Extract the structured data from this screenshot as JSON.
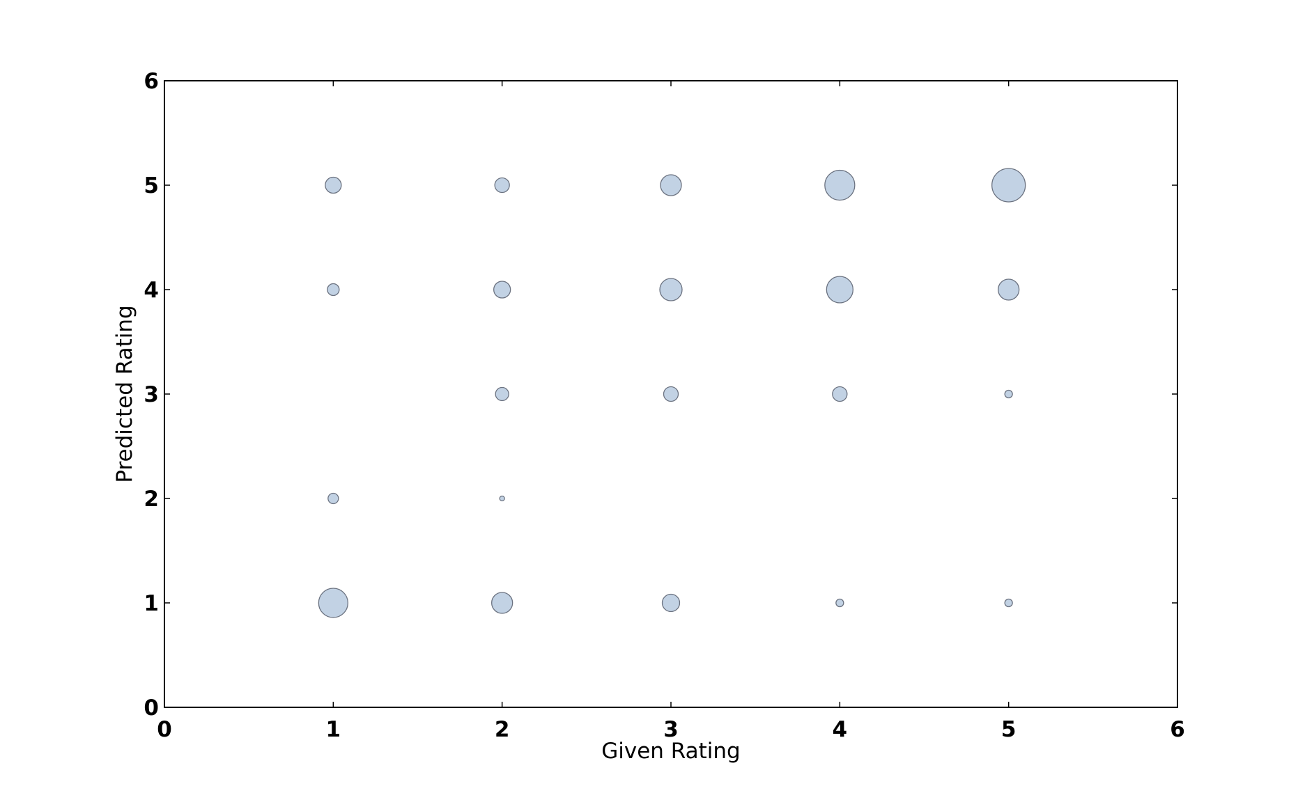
{
  "chart_data": {
    "type": "scatter",
    "title": "",
    "xlabel": "Given Rating",
    "ylabel": "Predicted Rating",
    "xlim": [
      0,
      6
    ],
    "ylim": [
      0,
      6
    ],
    "xticks": [
      0,
      1,
      2,
      3,
      4,
      5,
      6
    ],
    "yticks": [
      0,
      1,
      2,
      3,
      4,
      5,
      6
    ],
    "grid": false,
    "legend": "none",
    "colors": {
      "fill": "#c2d2e4",
      "edge": "#6b7280"
    },
    "points": [
      {
        "x": 1,
        "y": 5,
        "size": 11.5
      },
      {
        "x": 2,
        "y": 5,
        "size": 10.5
      },
      {
        "x": 3,
        "y": 5,
        "size": 15
      },
      {
        "x": 4,
        "y": 5,
        "size": 21.5
      },
      {
        "x": 5,
        "y": 5,
        "size": 24
      },
      {
        "x": 1,
        "y": 4,
        "size": 8.5
      },
      {
        "x": 2,
        "y": 4,
        "size": 12
      },
      {
        "x": 3,
        "y": 4,
        "size": 16
      },
      {
        "x": 4,
        "y": 4,
        "size": 19
      },
      {
        "x": 5,
        "y": 4,
        "size": 15
      },
      {
        "x": 2,
        "y": 3,
        "size": 9.5
      },
      {
        "x": 3,
        "y": 3,
        "size": 10.5
      },
      {
        "x": 4,
        "y": 3,
        "size": 10.5
      },
      {
        "x": 5,
        "y": 3,
        "size": 5.5
      },
      {
        "x": 1,
        "y": 2,
        "size": 7.5
      },
      {
        "x": 2,
        "y": 2,
        "size": 3.5
      },
      {
        "x": 1,
        "y": 1,
        "size": 21
      },
      {
        "x": 2,
        "y": 1,
        "size": 15
      },
      {
        "x": 3,
        "y": 1,
        "size": 12.5
      },
      {
        "x": 4,
        "y": 1,
        "size": 5.5
      },
      {
        "x": 5,
        "y": 1,
        "size": 5.5
      }
    ]
  }
}
